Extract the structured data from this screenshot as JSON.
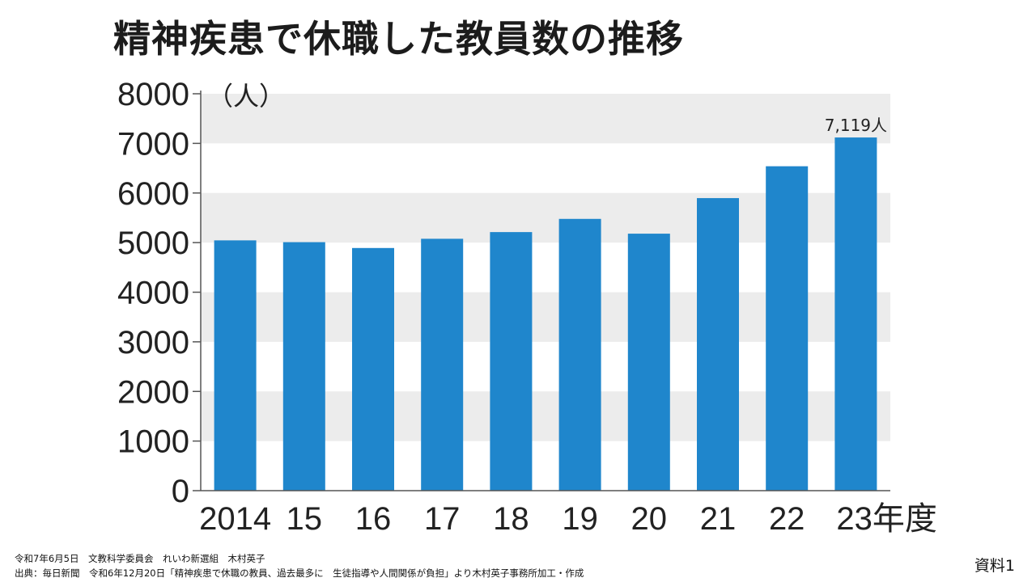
{
  "chart_data": {
    "type": "bar",
    "title": "精神疾患で休職した教員数の推移",
    "unit": "（人）",
    "categories": [
      "2014",
      "15",
      "16",
      "17",
      "18",
      "19",
      "20",
      "21",
      "22",
      "23年度"
    ],
    "values": [
      5045,
      5009,
      4891,
      5077,
      5212,
      5478,
      5180,
      5897,
      6539,
      7119
    ],
    "ylim": [
      0,
      8000
    ],
    "yticks": [
      0,
      1000,
      2000,
      3000,
      4000,
      5000,
      6000,
      7000,
      8000
    ],
    "annotation": {
      "index": 9,
      "text": "7,119人"
    },
    "grid": "alternating horizontal bands",
    "colors": {
      "bar": "#1f86cc",
      "band": "#ececec",
      "axis": "#555555"
    }
  },
  "footer": {
    "line1": "令和7年6月5日　文教科学委員会　れいわ新選組　木村英子",
    "line2": "出典：毎日新聞　令和6年12月20日「精神疾患で休職の教員、過去最多に　生徒指導や人間関係が負担」より木村英子事務所加工・作成"
  },
  "doc_label": "資料1"
}
